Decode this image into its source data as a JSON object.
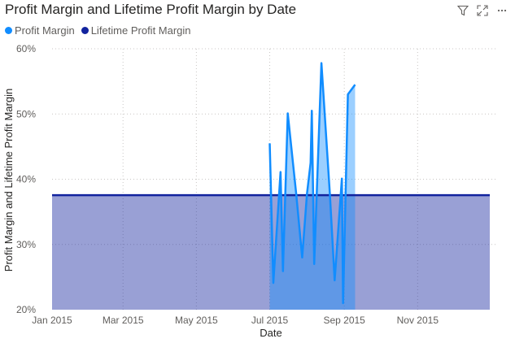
{
  "chart_data": {
    "type": "line",
    "title": "Profit Margin and Lifetime Profit Margin by Date",
    "xlabel": "Date",
    "ylabel": "Profit Margin and Lifetime Profit Margin",
    "x_ticks": [
      "Jan 2015",
      "Mar 2015",
      "May 2015",
      "Jul 2015",
      "Sep 2015",
      "Nov 2015"
    ],
    "y_ticks": [
      "20%",
      "30%",
      "40%",
      "50%",
      "60%"
    ],
    "xlim": [
      "2015-01-01",
      "2015-12-31"
    ],
    "ylim": [
      0.2,
      0.6
    ],
    "grid": true,
    "legend_position": "top-left",
    "series": [
      {
        "name": "Profit Margin",
        "color": "#118DFF",
        "points": [
          {
            "x": "2015-07-01",
            "y": 0.455
          },
          {
            "x": "2015-07-04",
            "y": 0.241
          },
          {
            "x": "2015-07-10",
            "y": 0.411
          },
          {
            "x": "2015-07-12",
            "y": 0.259
          },
          {
            "x": "2015-07-16",
            "y": 0.501
          },
          {
            "x": "2015-07-23",
            "y": 0.378
          },
          {
            "x": "2015-07-28",
            "y": 0.28
          },
          {
            "x": "2015-08-01",
            "y": 0.378
          },
          {
            "x": "2015-08-04",
            "y": 0.425
          },
          {
            "x": "2015-08-05",
            "y": 0.505
          },
          {
            "x": "2015-08-07",
            "y": 0.27
          },
          {
            "x": "2015-08-13",
            "y": 0.578
          },
          {
            "x": "2015-08-20",
            "y": 0.378
          },
          {
            "x": "2015-08-24",
            "y": 0.245
          },
          {
            "x": "2015-08-30",
            "y": 0.401
          },
          {
            "x": "2015-08-31",
            "y": 0.21
          },
          {
            "x": "2015-09-04",
            "y": 0.53
          },
          {
            "x": "2015-09-10",
            "y": 0.545
          }
        ]
      },
      {
        "name": "Lifetime Profit Margin",
        "color": "#12239E",
        "points": [
          {
            "x": "2015-01-01",
            "y": 0.3755
          },
          {
            "x": "2015-12-31",
            "y": 0.3755
          }
        ]
      }
    ]
  },
  "header": {
    "filter_icon": "filter-icon",
    "focus_icon": "focus-mode-icon",
    "more_icon": "more-options-icon"
  }
}
